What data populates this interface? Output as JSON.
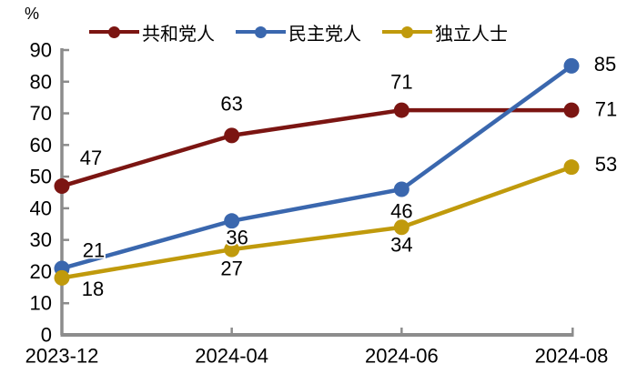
{
  "chart_data": {
    "type": "line",
    "title": "",
    "categories": [
      "2023-12",
      "2024-04",
      "2024-06",
      "2024-08"
    ],
    "series": [
      {
        "name": "共和党人",
        "color": "#7B1512",
        "values": [
          47,
          63,
          71,
          71
        ]
      },
      {
        "name": "民主党人",
        "color": "#3A67AE",
        "values": [
          21,
          36,
          46,
          85
        ]
      },
      {
        "name": "独立人士",
        "color": "#C09A0C",
        "values": [
          18,
          27,
          34,
          53
        ]
      }
    ],
    "xlabel": "",
    "ylabel": "%",
    "ylim": [
      0,
      90
    ],
    "ytick_step": 10,
    "grid": false,
    "data_labels": true,
    "legend_position": "top",
    "axis_color": "#8C8C8C",
    "text_color": "#000000"
  }
}
